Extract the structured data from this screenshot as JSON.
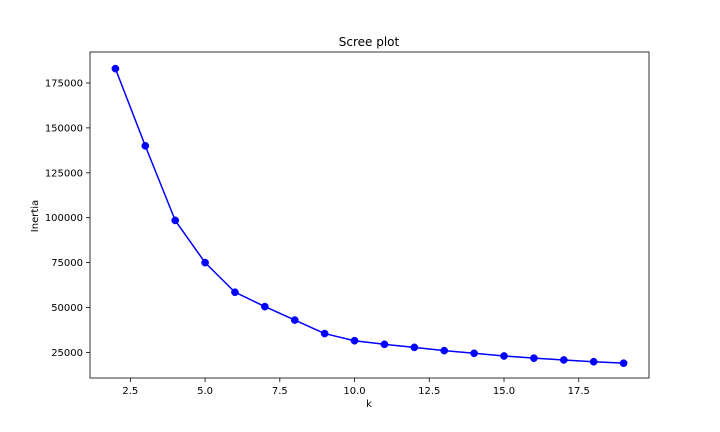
{
  "chart_data": {
    "type": "line",
    "title": "Scree plot",
    "xlabel": "k",
    "ylabel": "Inertia",
    "xlim": [
      1.15,
      19.85
    ],
    "ylim": [
      10750,
      192250
    ],
    "x_ticks": [
      2.5,
      5.0,
      7.5,
      10.0,
      12.5,
      15.0,
      17.5
    ],
    "x_tick_labels": [
      "2.5",
      "5.0",
      "7.5",
      "10.0",
      "12.5",
      "15.0",
      "17.5"
    ],
    "y_ticks": [
      25000,
      50000,
      75000,
      100000,
      125000,
      150000,
      175000
    ],
    "y_tick_labels": [
      "25000",
      "50000",
      "75000",
      "100000",
      "125000",
      "150000",
      "175000"
    ],
    "grid": false,
    "series": [
      {
        "name": "Inertia",
        "color": "#0000ff",
        "marker": "circle",
        "x": [
          2,
          3,
          4,
          5,
          6,
          7,
          8,
          9,
          10,
          11,
          12,
          13,
          14,
          15,
          16,
          17,
          18,
          19
        ],
        "values": [
          183000,
          140000,
          98500,
          75000,
          58500,
          50500,
          43000,
          35500,
          31500,
          29500,
          27800,
          26000,
          24500,
          23000,
          21800,
          20800,
          19800,
          19000
        ]
      }
    ]
  }
}
